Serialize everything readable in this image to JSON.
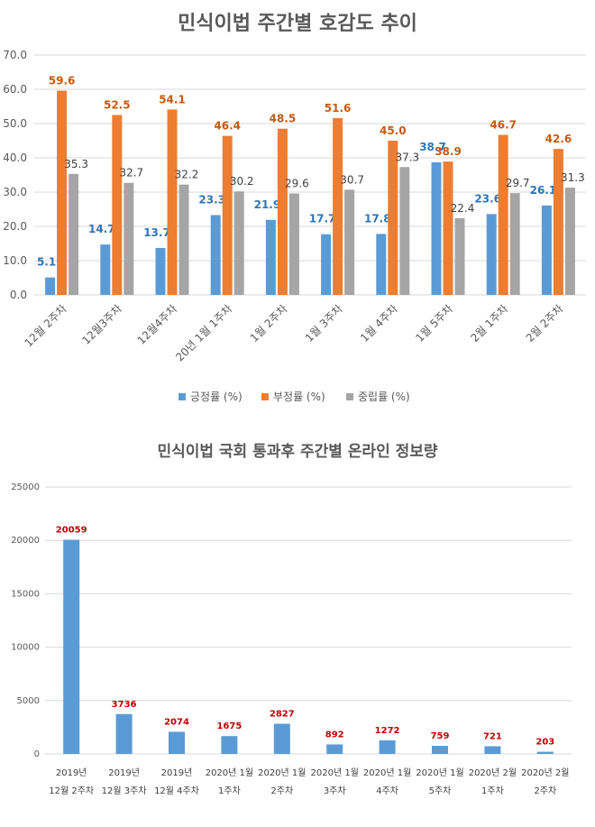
{
  "chart_data": [
    {
      "type": "bar",
      "title": "민식이법 주간별 호감도 추이",
      "categories": [
        "12월 2주차",
        "12월3주차",
        "12월4주차",
        "20년 1월 1주차",
        "1월 2주차",
        "1월 3주차",
        "1월 4주차",
        "1월 5주차",
        "2월 1주차",
        "2월 2주차"
      ],
      "series": [
        {
          "name": "긍정률 (%)",
          "color": "#5b9bd5",
          "label_color": "#2e75b6",
          "values": [
            5.1,
            14.7,
            13.7,
            23.3,
            21.9,
            17.7,
            17.8,
            38.7,
            23.6,
            26.1
          ]
        },
        {
          "name": "부정률 (%)",
          "color": "#ed7d31",
          "label_color": "#c55a11",
          "values": [
            59.6,
            52.5,
            54.1,
            46.4,
            48.5,
            51.6,
            45.0,
            38.9,
            46.7,
            42.6
          ]
        },
        {
          "name": "중립률 (%)",
          "color": "#a5a5a5",
          "label_color": "#404040",
          "values": [
            35.3,
            32.7,
            32.2,
            30.2,
            29.6,
            30.7,
            37.3,
            22.4,
            29.7,
            31.3
          ]
        }
      ],
      "ylim": [
        0,
        70
      ],
      "yticks": [
        "0.0",
        "10.0",
        "20.0",
        "30.0",
        "40.0",
        "50.0",
        "60.0",
        "70.0"
      ],
      "grid": true,
      "legend_position": "bottom"
    },
    {
      "type": "bar",
      "title": "민식이법 국회 통과후 주간별 온라인 정보량",
      "categories": [
        [
          "2019년",
          "12월 2주차"
        ],
        [
          "2019년",
          "12월 3주차"
        ],
        [
          "2019년",
          "12월 4주차"
        ],
        [
          "2020년 1월",
          "1주차"
        ],
        [
          "2020년 1월",
          "2주차"
        ],
        [
          "2020년 1월",
          "3주차"
        ],
        [
          "2020년 1월",
          "4주차"
        ],
        [
          "2020년 1월",
          "5주차"
        ],
        [
          "2020년 2월",
          "1주차"
        ],
        [
          "2020년 2월",
          "2주차"
        ]
      ],
      "values": [
        20059,
        3736,
        2074,
        1675,
        2827,
        892,
        1272,
        759,
        721,
        203
      ],
      "color": "#5b9bd5",
      "label_color": "#c00000",
      "ylim": [
        0,
        25000
      ],
      "yticks": [
        "0",
        "5000",
        "10000",
        "15000",
        "20000",
        "25000"
      ],
      "grid": true
    }
  ]
}
